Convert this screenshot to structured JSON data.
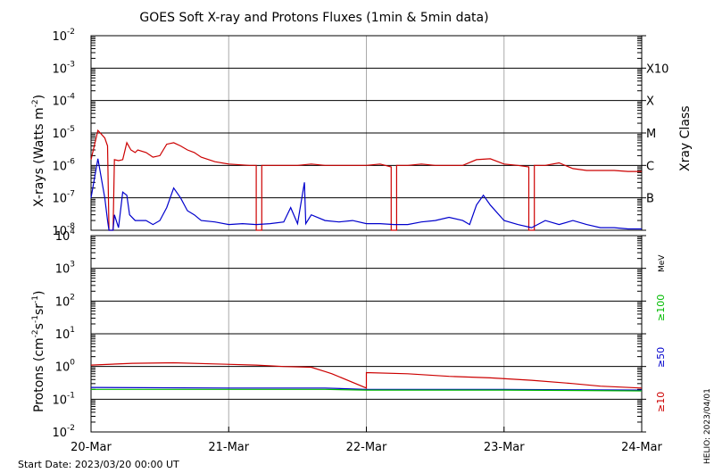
{
  "title": "GOES Soft X-ray and Protons Fluxes   (1min & 5min data)",
  "xray_ylabel": "X-rays (Watts m",
  "xray_ylabel_exp": "-2",
  "xray_right_label": "Xray Class",
  "proton_ylabel": "Protons (cm",
  "proton_ylabel_rest": "s",
  "proton_ylabel_tail": "sr",
  "start_date": "Start Date: 2023/03/20 00:00 UT",
  "helio_stamp": "HELIO: 2023/04/01",
  "colors": {
    "xray_long": "#cc0000",
    "xray_short": "#0000cc",
    "p10": "#cc0000",
    "p50": "#0000cc",
    "p100": "#00bb00",
    "grid": "#aaaaaa"
  },
  "chart_data": [
    {
      "type": "line",
      "name": "xray",
      "y_scale": "log",
      "ylim": [
        1e-08,
        0.01
      ],
      "xlim": [
        "2023-03-20",
        "2023-03-24"
      ],
      "x_ticks": [
        "20-Mar",
        "21-Mar",
        "22-Mar",
        "23-Mar",
        "24-Mar"
      ],
      "y_ticks": [
        {
          "base": "10",
          "exp": "-8"
        },
        {
          "base": "10",
          "exp": "-7"
        },
        {
          "base": "10",
          "exp": "-6"
        },
        {
          "base": "10",
          "exp": "-5"
        },
        {
          "base": "10",
          "exp": "-4"
        },
        {
          "base": "10",
          "exp": "-3"
        },
        {
          "base": "10",
          "exp": "-2"
        }
      ],
      "classes": [
        {
          "label": "B",
          "flux": 1e-07
        },
        {
          "label": "C",
          "flux": 1e-06
        },
        {
          "label": "M",
          "flux": 1e-05
        },
        {
          "label": "X",
          "flux": 0.0001
        },
        {
          "label": "X10",
          "flux": 0.001
        }
      ],
      "series": [
        {
          "key": "long",
          "points": [
            [
              0,
              1.5e-06
            ],
            [
              0.05,
              1.2e-05
            ],
            [
              0.1,
              7e-06
            ],
            [
              0.12,
              4e-06
            ],
            [
              0.13,
              1e-08
            ],
            [
              0.16,
              1e-08
            ],
            [
              0.17,
              1.5e-06
            ],
            [
              0.2,
              1.4e-06
            ],
            [
              0.23,
              1.5e-06
            ],
            [
              0.26,
              5e-06
            ],
            [
              0.29,
              3e-06
            ],
            [
              0.32,
              2.5e-06
            ],
            [
              0.34,
              3e-06
            ],
            [
              0.4,
              2.5e-06
            ],
            [
              0.45,
              1.8e-06
            ],
            [
              0.5,
              2e-06
            ],
            [
              0.55,
              4.5e-06
            ],
            [
              0.6,
              5e-06
            ],
            [
              0.65,
              4e-06
            ],
            [
              0.7,
              3e-06
            ],
            [
              0.75,
              2.5e-06
            ],
            [
              0.8,
              1.8e-06
            ],
            [
              0.9,
              1.3e-06
            ],
            [
              1.0,
              1.1e-06
            ],
            [
              1.15,
              1e-06
            ],
            [
              1.2,
              1e-06
            ],
            [
              1.2,
              1e-08
            ],
            [
              1.24,
              1e-08
            ],
            [
              1.24,
              1e-06
            ],
            [
              1.3,
              1e-06
            ],
            [
              1.4,
              1e-06
            ],
            [
              1.5,
              1e-06
            ],
            [
              1.6,
              1.1e-06
            ],
            [
              1.7,
              1e-06
            ],
            [
              1.8,
              1e-06
            ],
            [
              1.9,
              1e-06
            ],
            [
              2.0,
              1e-06
            ],
            [
              2.1,
              1.1e-06
            ],
            [
              2.18,
              9e-07
            ],
            [
              2.18,
              1e-08
            ],
            [
              2.22,
              1e-08
            ],
            [
              2.22,
              1e-06
            ],
            [
              2.3,
              1e-06
            ],
            [
              2.4,
              1.1e-06
            ],
            [
              2.5,
              1e-06
            ],
            [
              2.6,
              1e-06
            ],
            [
              2.7,
              1e-06
            ],
            [
              2.8,
              1.5e-06
            ],
            [
              2.9,
              1.6e-06
            ],
            [
              3.0,
              1.1e-06
            ],
            [
              3.1,
              1e-06
            ],
            [
              3.18,
              9e-07
            ],
            [
              3.18,
              1e-08
            ],
            [
              3.22,
              1e-08
            ],
            [
              3.22,
              1e-06
            ],
            [
              3.3,
              1e-06
            ],
            [
              3.4,
              1.2e-06
            ],
            [
              3.5,
              8e-07
            ],
            [
              3.6,
              7e-07
            ],
            [
              3.7,
              7e-07
            ],
            [
              3.8,
              7e-07
            ],
            [
              3.9,
              6.5e-07
            ],
            [
              4.0,
              6.5e-07
            ]
          ]
        },
        {
          "key": "short",
          "points": [
            [
              0,
              1e-07
            ],
            [
              0.05,
              1.6e-06
            ],
            [
              0.1,
              1e-07
            ],
            [
              0.12,
              2e-08
            ],
            [
              0.13,
              1e-08
            ],
            [
              0.16,
              1e-08
            ],
            [
              0.17,
              3e-08
            ],
            [
              0.2,
              1.2e-08
            ],
            [
              0.23,
              1.5e-07
            ],
            [
              0.26,
              1.2e-07
            ],
            [
              0.28,
              3e-08
            ],
            [
              0.32,
              2e-08
            ],
            [
              0.4,
              2e-08
            ],
            [
              0.45,
              1.5e-08
            ],
            [
              0.5,
              2e-08
            ],
            [
              0.55,
              5e-08
            ],
            [
              0.6,
              2e-07
            ],
            [
              0.65,
              1e-07
            ],
            [
              0.7,
              4e-08
            ],
            [
              0.75,
              3e-08
            ],
            [
              0.8,
              2e-08
            ],
            [
              0.9,
              1.8e-08
            ],
            [
              1.0,
              1.5e-08
            ],
            [
              1.1,
              1.6e-08
            ],
            [
              1.2,
              1.5e-08
            ],
            [
              1.3,
              1.6e-08
            ],
            [
              1.4,
              1.8e-08
            ],
            [
              1.45,
              5e-08
            ],
            [
              1.5,
              1.6e-08
            ],
            [
              1.55,
              3e-07
            ],
            [
              1.56,
              1.6e-08
            ],
            [
              1.6,
              3e-08
            ],
            [
              1.7,
              2e-08
            ],
            [
              1.8,
              1.8e-08
            ],
            [
              1.9,
              2e-08
            ],
            [
              2.0,
              1.6e-08
            ],
            [
              2.1,
              1.6e-08
            ],
            [
              2.2,
              1.5e-08
            ],
            [
              2.3,
              1.5e-08
            ],
            [
              2.4,
              1.8e-08
            ],
            [
              2.5,
              2e-08
            ],
            [
              2.6,
              2.5e-08
            ],
            [
              2.7,
              2e-08
            ],
            [
              2.75,
              1.5e-08
            ],
            [
              2.8,
              6e-08
            ],
            [
              2.85,
              1.2e-07
            ],
            [
              2.9,
              6e-08
            ],
            [
              3.0,
              2e-08
            ],
            [
              3.1,
              1.5e-08
            ],
            [
              3.2,
              1.2e-08
            ],
            [
              3.3,
              2e-08
            ],
            [
              3.4,
              1.5e-08
            ],
            [
              3.5,
              2e-08
            ],
            [
              3.6,
              1.5e-08
            ],
            [
              3.7,
              1.2e-08
            ],
            [
              3.8,
              1.2e-08
            ],
            [
              3.9,
              1.1e-08
            ],
            [
              4.0,
              1.1e-08
            ]
          ]
        }
      ]
    },
    {
      "type": "line",
      "name": "protons",
      "y_scale": "log",
      "ylim": [
        0.01,
        10000.0
      ],
      "xlim": [
        "2023-03-20",
        "2023-03-24"
      ],
      "x_ticks": [
        "20-Mar",
        "21-Mar",
        "22-Mar",
        "23-Mar",
        "24-Mar"
      ],
      "y_ticks": [
        {
          "base": "10",
          "exp": "-2"
        },
        {
          "base": "10",
          "exp": "-1"
        },
        {
          "base": "10",
          "exp": "0"
        },
        {
          "base": "10",
          "exp": "1"
        },
        {
          "base": "10",
          "exp": "2"
        },
        {
          "base": "10",
          "exp": "3"
        },
        {
          "base": "10",
          "exp": "4"
        }
      ],
      "threshold": 10,
      "unit_label": "MeV",
      "series": [
        {
          "key": "p10",
          "name": "≥10",
          "points": [
            [
              0,
              1.1
            ],
            [
              0.3,
              1.25
            ],
            [
              0.6,
              1.3
            ],
            [
              0.9,
              1.2
            ],
            [
              1.2,
              1.1
            ],
            [
              1.4,
              1.0
            ],
            [
              1.6,
              0.95
            ],
            [
              1.7,
              0.7
            ],
            [
              1.75,
              0.6
            ],
            [
              2.0,
              0.22
            ],
            [
              2.0,
              0.65
            ],
            [
              2.3,
              0.6
            ],
            [
              2.6,
              0.5
            ],
            [
              2.9,
              0.45
            ],
            [
              3.2,
              0.38
            ],
            [
              3.5,
              0.3
            ],
            [
              3.7,
              0.25
            ],
            [
              4.0,
              0.22
            ]
          ]
        },
        {
          "key": "p50",
          "name": "≥50",
          "points": [
            [
              0,
              0.23
            ],
            [
              1,
              0.22
            ],
            [
              1.7,
              0.22
            ],
            [
              2.0,
              0.2
            ],
            [
              3.0,
              0.2
            ],
            [
              4.0,
              0.19
            ]
          ]
        },
        {
          "key": "p100",
          "name": "≥100",
          "points": [
            [
              0,
              0.2
            ],
            [
              1,
              0.2
            ],
            [
              1.7,
              0.2
            ],
            [
              2.0,
              0.19
            ],
            [
              3.0,
              0.19
            ],
            [
              4.0,
              0.18
            ]
          ]
        }
      ]
    }
  ]
}
